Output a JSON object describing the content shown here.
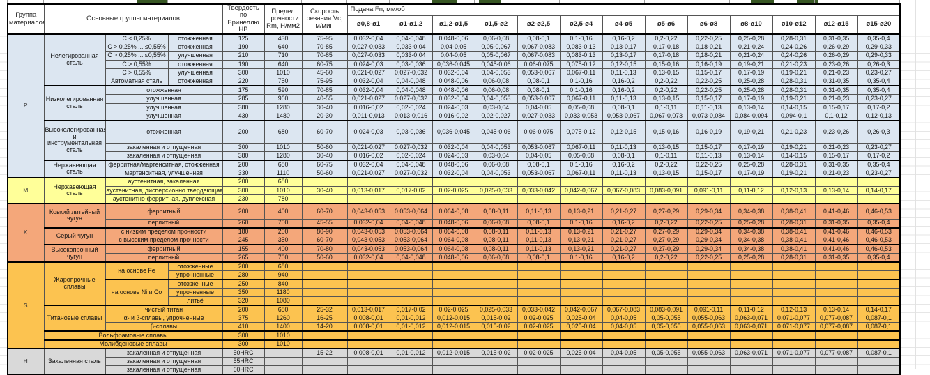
{
  "header": {
    "col_group": "Группа материалов",
    "col_main_groups": "Основные группы материалов",
    "col_hardness": "Твердость по Бринеллю HB",
    "col_strength": "Предел прочности Rm, Н/мм2",
    "col_speed": "Скорость резания Vc, м/мин",
    "col_feed": "Подача Fn, мм/об",
    "diameters": [
      "ø0,8-ø1",
      "ø1-ø1,2",
      "ø1,2-ø1,5",
      "ø1,5-ø2",
      "ø2-ø2,5",
      "ø2,5-ø4",
      "ø4-ø5",
      "ø5-ø6",
      "ø6-ø8",
      "ø8-ø10",
      "ø10-ø12",
      "ø12-ø15",
      "ø15-ø20"
    ]
  },
  "colors": {
    "section_p": "#dce6f1",
    "section_m": "#ffff99",
    "section_k": "#f4a77a",
    "section_s": "#fcc350",
    "section_h": "#d9d9d9",
    "border": "#000000",
    "artifact_green": "#375623"
  },
  "feed_sets": {
    "A": [
      "0,032-0,04",
      "0,04-0,048",
      "0,048-0,06",
      "0,06-0,08",
      "0,08-0,1",
      "0,1-0,16",
      "0,16-0,2",
      "0,2-0,22",
      "0,22-0,25",
      "0,25-0,28",
      "0,28-0,31",
      "0,31-0,35",
      "0,35-0,4"
    ],
    "B": [
      "0,027-0,033",
      "0,033-0,04",
      "0,04-0,05",
      "0,05-0,067",
      "0,067-0,083",
      "0,083-0,13",
      "0,13-0,17",
      "0,17-0,18",
      "0,18-0,21",
      "0,21-0,24",
      "0,24-0,26",
      "0,26-0,29",
      "0,29-0,33"
    ],
    "C": [
      "0,024-0,03",
      "0,03-0,036",
      "0,036-0,045",
      "0,045-0,06",
      "0,06-0,075",
      "0,075-0,12",
      "0,12-0,15",
      "0,15-0,16",
      "0,16-0,19",
      "0,19-0,21",
      "0,21-0,23",
      "0,23-0,26",
      "0,26-0,3"
    ],
    "D": [
      "0,021-0,027",
      "0,027-0,032",
      "0,032-0,04",
      "0,04-0,053",
      "0,053-0,067",
      "0,067-0,11",
      "0,11-0,13",
      "0,13-0,15",
      "0,15-0,17",
      "0,17-0,19",
      "0,19-0,21",
      "0,21-0,23",
      "0,23-0,27"
    ],
    "E": [
      "0,016-0,02",
      "0,02-0,024",
      "0,024-0,03",
      "0,03-0,04",
      "0,04-0,05",
      "0,05-0,08",
      "0,08-0,1",
      "0,1-0,11",
      "0,11-0,13",
      "0,13-0,14",
      "0,14-0,15",
      "0,15-0,17",
      "0,17-0,2"
    ],
    "F": [
      "0,011-0,013",
      "0,013-0,016",
      "0,016-0,02",
      "0,02-0,027",
      "0,027-0,033",
      "0,033-0,053",
      "0,053-0,067",
      "0,067-0,073",
      "0,073-0,084",
      "0,084-0,094",
      "0,094-0,1",
      "0,1-0,12",
      "0,12-0,13"
    ],
    "G": [
      "0,013-0,017",
      "0,017-0,02",
      "0,02-0,025",
      "0,025-0,033",
      "0,033-0,042",
      "0,042-0,067",
      "0,067-0,083",
      "0,083-0,091",
      "0,091-0,11",
      "0,11-0,12",
      "0,12-0,13",
      "0,13-0,14",
      "0,14-0,17"
    ],
    "H": [
      "0,043-0,053",
      "0,053-0,064",
      "0,064-0,08",
      "0,08-0,11",
      "0,11-0,13",
      "0,13-0,21",
      "0,21-0,27",
      "0,27-0,29",
      "0,29-0,34",
      "0,34-0,38",
      "0,38-0,41",
      "0,41-0,46",
      "0,46-0,53"
    ],
    "I": [
      "0,008-0,01",
      "0,01-0,012",
      "0,012-0,015",
      "0,015-0,02",
      "0,02-0,025",
      "0,025-0,04",
      "0,04-0,05",
      "0,05-0,055",
      "0,055-0,063",
      "0,063-0,071",
      "0,071-0,077",
      "0,077-0,087",
      "0,087-0,1"
    ]
  },
  "sections": [
    {
      "letter": "P",
      "color": "#dce6f1",
      "families": [
        {
          "name": "Нелегированная сталь",
          "rows": [
            {
              "cells2": [
                {
                  "t": "C ≤ 0,25%"
                },
                {
                  "t": "отожженная"
                }
              ],
              "hb": "125",
              "rm": "430",
              "vc": "75-95",
              "feeds": "A"
            },
            {
              "cells2": [
                {
                  "t": "C > 0,25% ... ≤0,55%"
                },
                {
                  "t": "отожженная"
                }
              ],
              "hb": "190",
              "rm": "640",
              "vc": "70-85",
              "feeds": "B"
            },
            {
              "cells2": [
                {
                  "t": "C > 0,25% ... ≤0,55%"
                },
                {
                  "t": "улучшенная"
                }
              ],
              "hb": "210",
              "rm": "710",
              "vc": "70-85",
              "feeds": "B"
            },
            {
              "cells2": [
                {
                  "t": "C > 0,55%"
                },
                {
                  "t": "отожженная"
                }
              ],
              "hb": "190",
              "rm": "640",
              "vc": "60-75",
              "feeds": "C"
            },
            {
              "cells2": [
                {
                  "t": "C > 0,55%"
                },
                {
                  "t": "улучшенная"
                }
              ],
              "hb": "300",
              "rm": "1010",
              "vc": "45-60",
              "feeds": "D"
            },
            {
              "cells2": [
                {
                  "t": "Автоматная сталь"
                },
                {
                  "t": "отожженная"
                }
              ],
              "hb": "220",
              "rm": "750",
              "vc": "75-95",
              "feeds": "A"
            }
          ]
        },
        {
          "name": "Низколегированная сталь",
          "rows": [
            {
              "cells2": [
                {
                  "t": "отожженная",
                  "cs": 2
                }
              ],
              "hb": "175",
              "rm": "590",
              "vc": "70-85",
              "feeds": "A"
            },
            {
              "cells2": [
                {
                  "t": "улучшенная",
                  "cs": 2
                }
              ],
              "hb": "285",
              "rm": "960",
              "vc": "40-55",
              "feeds": "D"
            },
            {
              "cells2": [
                {
                  "t": "улучшенная",
                  "cs": 2
                }
              ],
              "hb": "380",
              "rm": "1280",
              "vc": "30-40",
              "feeds": "E"
            },
            {
              "cells2": [
                {
                  "t": "улучшенная",
                  "cs": 2
                }
              ],
              "hb": "430",
              "rm": "1480",
              "vc": "20-30",
              "feeds": "F"
            }
          ]
        },
        {
          "name": "Высоколегированная и инструментальная сталь",
          "rows": [
            {
              "cells2": [
                {
                  "t": "отожженная",
                  "cs": 2
                }
              ],
              "hb": "200",
              "rm": "680",
              "vc": "60-70",
              "feeds": "C",
              "h": 2.6
            },
            {
              "cells2": [
                {
                  "t": "закаленная и отпущенная",
                  "cs": 2
                }
              ],
              "hb": "300",
              "rm": "1010",
              "vc": "50-60",
              "feeds": "D"
            },
            {
              "cells2": [
                {
                  "t": "закаленная и отпущенная",
                  "cs": 2
                }
              ],
              "hb": "380",
              "rm": "1280",
              "vc": "30-40",
              "feeds": "E"
            }
          ]
        },
        {
          "name": "Нержавеющая сталь",
          "rows": [
            {
              "cells2": [
                {
                  "t": "ферритная/мартенситная, отожженная",
                  "cs": 2
                }
              ],
              "hb": "200",
              "rm": "680",
              "vc": "60-75",
              "feeds": "A"
            },
            {
              "cells2": [
                {
                  "t": "мартенситная, улучшенная",
                  "cs": 2
                }
              ],
              "hb": "330",
              "rm": "1110",
              "vc": "50-60",
              "feeds": "D"
            }
          ]
        }
      ]
    },
    {
      "letter": "M",
      "color": "#ffff99",
      "families": [
        {
          "name": "Нержавеющая сталь",
          "rows": [
            {
              "cells2": [
                {
                  "t": "аустенитная, закаленная",
                  "cs": 2
                }
              ],
              "hb": "200",
              "rm": "680",
              "vc": "",
              "feeds": null
            },
            {
              "cells2": [
                {
                  "t": "аустенитная, дисперсионно твердеющая",
                  "cs": 2
                }
              ],
              "hb": "300",
              "rm": "1010",
              "vc": "30-40",
              "feeds": "G"
            },
            {
              "cells2": [
                {
                  "t": "аустенитно-ферритная, дуплексная",
                  "cs": 2
                }
              ],
              "hb": "230",
              "rm": "780",
              "vc": "",
              "feeds": null
            }
          ]
        }
      ]
    },
    {
      "letter": "K",
      "color": "#f4a77a",
      "families": [
        {
          "name": "Ковкий литейный чугун",
          "rows": [
            {
              "cells2": [
                {
                  "t": "ферритный",
                  "cs": 2
                }
              ],
              "hb": "200",
              "rm": "400",
              "vc": "60-70",
              "feeds": "H",
              "h": 1.8
            },
            {
              "cells2": [
                {
                  "t": "перлитный",
                  "cs": 2
                }
              ],
              "hb": "260",
              "rm": "700",
              "vc": "45-55",
              "feeds": "A"
            }
          ]
        },
        {
          "name": "Серый чугун",
          "rows": [
            {
              "cells2": [
                {
                  "t": "с низким пределом прочности",
                  "cs": 2
                }
              ],
              "hb": "180",
              "rm": "200",
              "vc": "80-90",
              "feeds": "H"
            },
            {
              "cells2": [
                {
                  "t": "с высоким пределом прочности",
                  "cs": 2
                }
              ],
              "hb": "245",
              "rm": "350",
              "vc": "60-70",
              "feeds": "H"
            }
          ]
        },
        {
          "name": "Высокопрочный чугун",
          "rows": [
            {
              "cells2": [
                {
                  "t": "ферритный",
                  "cs": 2
                }
              ],
              "hb": "155",
              "rm": "400",
              "vc": "70-80",
              "feeds": "H"
            },
            {
              "cells2": [
                {
                  "t": "перлитный",
                  "cs": 2
                }
              ],
              "hb": "265",
              "rm": "700",
              "vc": "50-60",
              "feeds": "A"
            }
          ]
        }
      ]
    },
    {
      "letter": "S",
      "color": "#fcc350",
      "families": [
        {
          "name": "Жаропрочные сплавы",
          "rows": [
            {
              "cells2": [
                {
                  "t": "на основе Fe",
                  "rs": 2
                },
                {
                  "t": "отожженные"
                }
              ],
              "hb": "200",
              "rm": "680",
              "vc": "",
              "feeds": null
            },
            {
              "cells2": [
                {
                  "t": "упрочненные"
                }
              ],
              "hb": "280",
              "rm": "940",
              "vc": "",
              "feeds": null
            },
            {
              "cells2": [
                {
                  "t": "на основе Ni и Co",
                  "rs": 3
                },
                {
                  "t": "отожженные"
                }
              ],
              "hb": "250",
              "rm": "840",
              "vc": "",
              "feeds": null,
              "top2": true
            },
            {
              "cells2": [
                {
                  "t": "упрочненные"
                }
              ],
              "hb": "350",
              "rm": "1180",
              "vc": "",
              "feeds": null
            },
            {
              "cells2": [
                {
                  "t": "литьё"
                }
              ],
              "hb": "320",
              "rm": "1080",
              "vc": "",
              "feeds": null
            }
          ]
        },
        {
          "name": "Титановые сплавы",
          "rows": [
            {
              "cells2": [
                {
                  "t": "чистый титан",
                  "cs": 2
                }
              ],
              "hb": "200",
              "rm": "680",
              "vc": "25-32",
              "feeds": "G"
            },
            {
              "cells2": [
                {
                  "t": "α- и β-сплавы, упрочненные",
                  "cs": 2
                }
              ],
              "hb": "375",
              "rm": "1260",
              "vc": "16-25",
              "feeds": "I"
            },
            {
              "cells2": [
                {
                  "t": "β-сплавы",
                  "cs": 2
                }
              ],
              "hb": "410",
              "rm": "1400",
              "vc": "14-20",
              "feeds": "I"
            }
          ]
        },
        {
          "name": "Вольфрамовые сплавы",
          "cs": 3,
          "rows": [
            {
              "cells2": [],
              "hb": "300",
              "rm": "1010",
              "vc": "",
              "feeds": null
            }
          ]
        },
        {
          "name": "Молибденовые сплавы",
          "cs": 3,
          "rows": [
            {
              "cells2": [],
              "hb": "300",
              "rm": "1010",
              "vc": "",
              "feeds": null
            }
          ]
        }
      ]
    },
    {
      "letter": "H",
      "color": "#d9d9d9",
      "families": [
        {
          "name": "Закаленная сталь",
          "rows": [
            {
              "cells2": [
                {
                  "t": "закаленная и отпущенная",
                  "cs": 2
                }
              ],
              "hb": "50HRC",
              "rm": "",
              "vc": "15-22",
              "feeds": "I"
            },
            {
              "cells2": [
                {
                  "t": "закаленная и отпущенная",
                  "cs": 2
                }
              ],
              "hb": "55HRC",
              "rm": "",
              "vc": "",
              "feeds": null
            },
            {
              "cells2": [
                {
                  "t": "закаленная и отпущенная",
                  "cs": 2
                }
              ],
              "hb": "60HRC",
              "rm": "",
              "vc": "",
              "feeds": null
            }
          ]
        }
      ]
    }
  ]
}
